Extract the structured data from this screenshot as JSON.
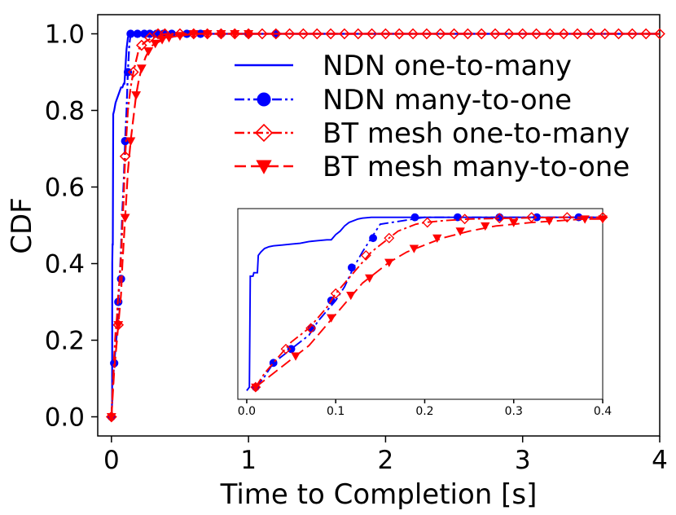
{
  "chart_data": [
    {
      "type": "line",
      "title": "",
      "xlabel": "Time to Completion [s]",
      "ylabel": "CDF",
      "xlim": [
        -0.1,
        4.0
      ],
      "ylim": [
        -0.05,
        1.05
      ],
      "xticks": [
        0,
        1,
        2,
        3,
        4
      ],
      "xtick_labels": [
        "0",
        "1",
        "2",
        "3",
        "4"
      ],
      "yticks": [
        0.0,
        0.2,
        0.4,
        0.6,
        0.8,
        1.0
      ],
      "ytick_labels": [
        "0.0",
        "0.2",
        "0.4",
        "0.6",
        "0.8",
        "1.0"
      ],
      "grid": false,
      "legend": "upper right",
      "series": [
        {
          "name": "NDN one-to-many",
          "color": "#0000ff",
          "dash": "solid",
          "marker": "none",
          "x": [
            0.0,
            0.005,
            0.006,
            0.008,
            0.01,
            0.013,
            0.02,
            0.03,
            0.04,
            0.05,
            0.06,
            0.07,
            0.08,
            0.09,
            0.095,
            0.1,
            0.11,
            0.12,
            0.13,
            0.14,
            0.2,
            0.5,
            1.0,
            2.0,
            3.0,
            4.0
          ],
          "y": [
            0.0,
            0.04,
            0.4,
            0.45,
            0.45,
            0.79,
            0.8,
            0.82,
            0.83,
            0.84,
            0.85,
            0.86,
            0.86,
            0.87,
            0.87,
            0.9,
            0.96,
            0.99,
            1.0,
            1.0,
            1.0,
            1.0,
            1.0,
            1.0,
            1.0,
            1.0
          ]
        },
        {
          "name": "NDN many-to-one",
          "color": "#0000ff",
          "dash": "dashdot",
          "marker": "circle",
          "x": [
            0.0,
            0.01,
            0.02,
            0.03,
            0.04,
            0.05,
            0.06,
            0.07,
            0.08,
            0.09,
            0.1,
            0.11,
            0.12,
            0.13,
            0.14,
            0.16,
            0.2,
            0.25,
            0.3,
            0.5,
            1.0,
            1.5,
            2.0,
            3.0,
            4.0
          ],
          "y": [
            0.0,
            0.08,
            0.14,
            0.18,
            0.22,
            0.3,
            0.36,
            0.44,
            0.54,
            0.62,
            0.72,
            0.8,
            0.9,
            0.97,
            1.0,
            1.0,
            1.0,
            1.0,
            1.0,
            1.0,
            1.0,
            1.0,
            1.0,
            1.0,
            1.0
          ],
          "marker_x": [
            0.0,
            0.02,
            0.05,
            0.07,
            0.1,
            0.12,
            0.14,
            0.19,
            0.24,
            0.28,
            0.33,
            0.38,
            0.44,
            0.55,
            0.65,
            0.8,
            1.0,
            1.2
          ],
          "marker_y": [
            0.0,
            0.14,
            0.3,
            0.36,
            0.72,
            0.9,
            1.0,
            1.0,
            1.0,
            1.0,
            1.0,
            1.0,
            1.0,
            1.0,
            1.0,
            1.0,
            1.0,
            1.0
          ]
        },
        {
          "name": "BT mesh one-to-many",
          "color": "#ff0000",
          "dash": "dashdot",
          "marker": "diamond-open",
          "x": [
            0.0,
            0.01,
            0.02,
            0.03,
            0.04,
            0.05,
            0.06,
            0.07,
            0.08,
            0.09,
            0.1,
            0.11,
            0.12,
            0.14,
            0.16,
            0.18,
            0.2,
            0.22,
            0.25,
            0.3,
            0.35,
            0.4,
            0.6,
            1.0,
            2.0,
            3.0,
            4.0
          ],
          "y": [
            0.0,
            0.08,
            0.16,
            0.22,
            0.26,
            0.32,
            0.36,
            0.42,
            0.5,
            0.58,
            0.68,
            0.74,
            0.8,
            0.86,
            0.9,
            0.93,
            0.96,
            0.97,
            0.98,
            0.99,
            0.995,
            1.0,
            1.0,
            1.0,
            1.0,
            1.0,
            1.0
          ],
          "marker_x": [
            0.0,
            0.05,
            0.1,
            0.16,
            0.22,
            0.28,
            0.34,
            0.39,
            0.5,
            0.6,
            0.7,
            0.8,
            0.9,
            1.0,
            1.1,
            1.2,
            1.3,
            1.4,
            1.5,
            1.6,
            1.7,
            1.8,
            1.9,
            2.0,
            2.1,
            2.2,
            2.3,
            2.4,
            2.5,
            2.6,
            2.7,
            2.8,
            2.9,
            3.0,
            3.1,
            3.2,
            3.3,
            3.4,
            3.5,
            3.6,
            3.7,
            3.8,
            3.9,
            4.0
          ],
          "marker_y": [
            0.0,
            0.24,
            0.68,
            0.9,
            0.97,
            0.99,
            1.0,
            1.0,
            1.0,
            1.0,
            1.0,
            1.0,
            1.0,
            1.0,
            1.0,
            1.0,
            1.0,
            1.0,
            1.0,
            1.0,
            1.0,
            1.0,
            1.0,
            1.0,
            1.0,
            1.0,
            1.0,
            1.0,
            1.0,
            1.0,
            1.0,
            1.0,
            1.0,
            1.0,
            1.0,
            1.0,
            1.0,
            1.0,
            1.0,
            1.0,
            1.0,
            1.0,
            1.0,
            1.0
          ]
        },
        {
          "name": "BT mesh many-to-one",
          "color": "#ff0000",
          "dash": "dashed",
          "marker": "triangle-down",
          "x": [
            0.0,
            0.01,
            0.02,
            0.03,
            0.04,
            0.05,
            0.06,
            0.07,
            0.08,
            0.09,
            0.1,
            0.11,
            0.12,
            0.14,
            0.16,
            0.18,
            0.2,
            0.22,
            0.25,
            0.28,
            0.3,
            0.35,
            0.4,
            0.5,
            0.6,
            0.8,
            1.0,
            2.0,
            3.0,
            4.0
          ],
          "y": [
            0.0,
            0.06,
            0.12,
            0.16,
            0.2,
            0.24,
            0.28,
            0.32,
            0.4,
            0.46,
            0.52,
            0.58,
            0.64,
            0.72,
            0.78,
            0.84,
            0.88,
            0.91,
            0.94,
            0.96,
            0.97,
            0.98,
            0.99,
            0.995,
            1.0,
            1.0,
            1.0,
            1.0,
            1.0,
            1.0
          ],
          "marker_x": [
            0.0,
            0.05,
            0.1,
            0.14,
            0.18,
            0.22,
            0.27,
            0.32,
            0.37,
            0.42,
            0.5,
            0.6,
            0.7,
            0.8,
            0.9,
            1.0
          ],
          "marker_y": [
            0.0,
            0.24,
            0.52,
            0.72,
            0.84,
            0.91,
            0.955,
            0.975,
            0.985,
            0.99,
            0.995,
            1.0,
            1.0,
            1.0,
            1.0,
            1.0
          ]
        }
      ]
    },
    {
      "type": "line",
      "title": "",
      "xlabel": "",
      "ylabel": "",
      "xlim": [
        -0.01,
        0.4
      ],
      "ylim": [
        -0.05,
        1.05
      ],
      "xticks": [
        0.0,
        0.1,
        0.2,
        0.3,
        0.4
      ],
      "xtick_labels": [
        "0.0",
        "0.1",
        "0.2",
        "0.3",
        "0.4"
      ],
      "yticks": [],
      "grid": false,
      "legend": "none",
      "series": [
        {
          "color": "#0000ff",
          "dash": "solid",
          "marker": "none",
          "x": [
            0.0,
            0.003,
            0.004,
            0.007,
            0.008,
            0.012,
            0.013,
            0.016,
            0.02,
            0.025,
            0.03,
            0.04,
            0.05,
            0.06,
            0.07,
            0.08,
            0.09,
            0.095,
            0.1,
            0.105,
            0.11,
            0.115,
            0.12,
            0.125,
            0.13,
            0.14,
            0.2,
            0.3,
            0.4
          ],
          "y": [
            0.0,
            0.02,
            0.66,
            0.66,
            0.68,
            0.68,
            0.78,
            0.8,
            0.82,
            0.83,
            0.835,
            0.84,
            0.845,
            0.85,
            0.86,
            0.865,
            0.87,
            0.87,
            0.9,
            0.92,
            0.95,
            0.97,
            0.98,
            0.99,
            0.995,
            1.0,
            1.0,
            1.0,
            1.0
          ]
        },
        {
          "color": "#0000ff",
          "dash": "dashdot",
          "marker": "circle",
          "x": [
            0.01,
            0.02,
            0.03,
            0.04,
            0.05,
            0.06,
            0.07,
            0.08,
            0.09,
            0.1,
            0.11,
            0.12,
            0.13,
            0.14,
            0.15,
            0.2,
            0.3,
            0.4
          ],
          "y": [
            0.02,
            0.08,
            0.16,
            0.2,
            0.24,
            0.28,
            0.32,
            0.4,
            0.46,
            0.52,
            0.6,
            0.71,
            0.8,
            0.88,
            0.96,
            1.0,
            1.0,
            1.0
          ],
          "marker_x": [
            0.01,
            0.03,
            0.05,
            0.073,
            0.095,
            0.118,
            0.142,
            0.189,
            0.237,
            0.284,
            0.326,
            0.373
          ],
          "marker_y": [
            0.02,
            0.16,
            0.24,
            0.36,
            0.52,
            0.71,
            0.88,
            1.0,
            1.0,
            1.0,
            1.0,
            1.0
          ]
        },
        {
          "color": "#ff0000",
          "dash": "dashdot",
          "marker": "diamond-open",
          "x": [
            0.01,
            0.02,
            0.03,
            0.04,
            0.05,
            0.06,
            0.07,
            0.08,
            0.09,
            0.1,
            0.11,
            0.12,
            0.13,
            0.14,
            0.15,
            0.16,
            0.17,
            0.18,
            0.19,
            0.2,
            0.22,
            0.25,
            0.3,
            0.35,
            0.4
          ],
          "y": [
            0.02,
            0.1,
            0.16,
            0.22,
            0.28,
            0.32,
            0.36,
            0.42,
            0.48,
            0.56,
            0.62,
            0.68,
            0.74,
            0.8,
            0.84,
            0.88,
            0.92,
            0.94,
            0.96,
            0.97,
            0.98,
            0.99,
            0.995,
            1.0,
            1.0
          ],
          "marker_x": [
            0.01,
            0.044,
            0.072,
            0.1,
            0.134,
            0.16,
            0.203,
            0.245,
            0.284,
            0.32,
            0.36,
            0.4
          ],
          "marker_y": [
            0.02,
            0.24,
            0.36,
            0.56,
            0.78,
            0.88,
            0.97,
            0.99,
            0.995,
            1.0,
            1.0,
            1.0
          ]
        },
        {
          "color": "#ff0000",
          "dash": "dashed",
          "marker": "triangle-down",
          "x": [
            0.01,
            0.02,
            0.03,
            0.04,
            0.05,
            0.06,
            0.07,
            0.08,
            0.09,
            0.1,
            0.11,
            0.12,
            0.13,
            0.14,
            0.15,
            0.16,
            0.18,
            0.2,
            0.22,
            0.25,
            0.28,
            0.3,
            0.32,
            0.35,
            0.38,
            0.4
          ],
          "y": [
            0.02,
            0.06,
            0.1,
            0.14,
            0.18,
            0.22,
            0.26,
            0.32,
            0.38,
            0.44,
            0.5,
            0.56,
            0.62,
            0.66,
            0.7,
            0.74,
            0.8,
            0.84,
            0.88,
            0.92,
            0.95,
            0.96,
            0.97,
            0.98,
            0.99,
            0.99
          ],
          "marker_x": [
            0.01,
            0.055,
            0.095,
            0.117,
            0.138,
            0.16,
            0.188,
            0.214,
            0.24,
            0.268,
            0.3,
            0.34,
            0.38,
            0.4
          ],
          "marker_y": [
            0.02,
            0.2,
            0.42,
            0.55,
            0.65,
            0.74,
            0.82,
            0.88,
            0.92,
            0.95,
            0.97,
            0.98,
            0.99,
            0.99
          ]
        }
      ]
    }
  ]
}
